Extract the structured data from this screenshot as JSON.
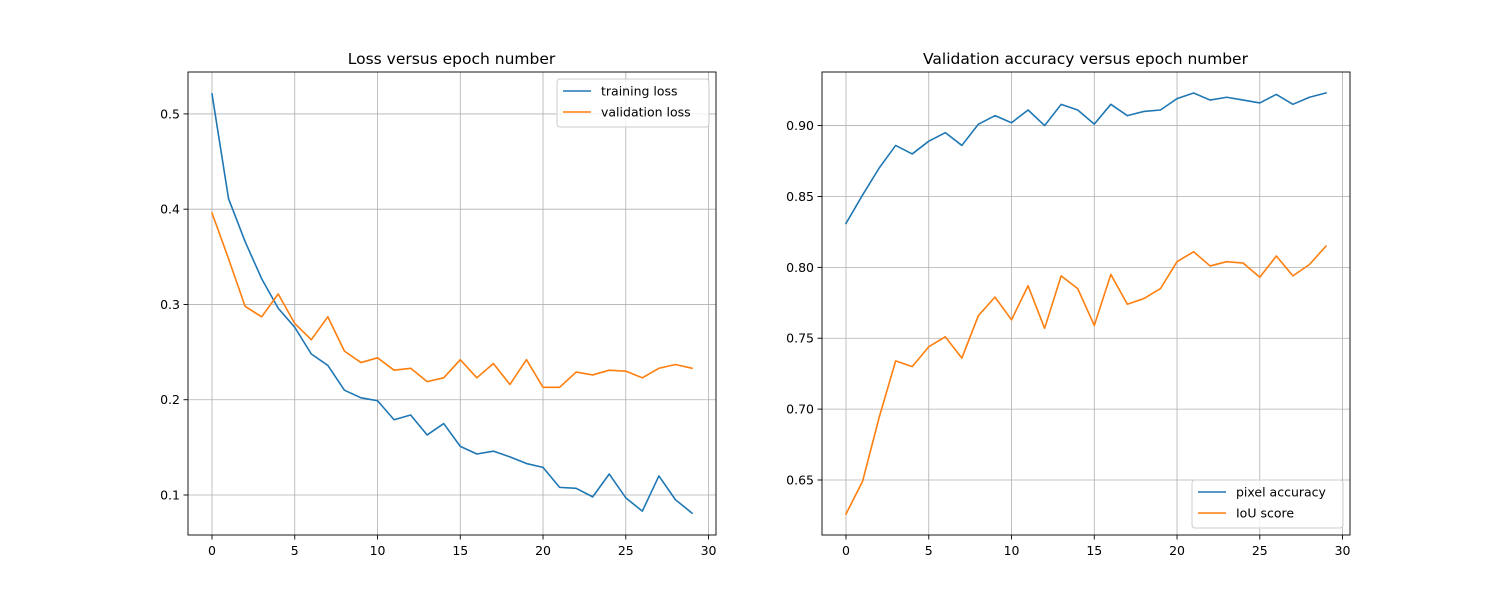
{
  "chart_data": [
    {
      "type": "line",
      "title": "Loss versus epoch number",
      "xlabel": "",
      "ylabel": "",
      "x": [
        0,
        1,
        2,
        3,
        4,
        5,
        6,
        7,
        8,
        9,
        10,
        11,
        12,
        13,
        14,
        15,
        16,
        17,
        18,
        19,
        20,
        21,
        22,
        23,
        24,
        25,
        26,
        27,
        28,
        29
      ],
      "series": [
        {
          "name": "training loss",
          "color": "#1f77b4",
          "values": [
            0.521,
            0.411,
            0.366,
            0.327,
            0.296,
            0.276,
            0.248,
            0.236,
            0.21,
            0.202,
            0.199,
            0.179,
            0.184,
            0.163,
            0.175,
            0.151,
            0.143,
            0.146,
            0.14,
            0.133,
            0.129,
            0.108,
            0.107,
            0.098,
            0.122,
            0.097,
            0.083,
            0.12,
            0.095,
            0.081
          ]
        },
        {
          "name": "validation loss",
          "color": "#ff7f0e",
          "values": [
            0.396,
            0.348,
            0.298,
            0.287,
            0.311,
            0.28,
            0.263,
            0.287,
            0.251,
            0.239,
            0.244,
            0.231,
            0.233,
            0.219,
            0.223,
            0.242,
            0.223,
            0.238,
            0.216,
            0.242,
            0.213,
            0.213,
            0.229,
            0.226,
            0.231,
            0.23,
            0.223,
            0.233,
            0.237,
            0.233
          ]
        }
      ],
      "xlim": [
        -1.45,
        30.45
      ],
      "ylim": [
        0.058,
        0.544
      ],
      "xticks": [
        0,
        5,
        10,
        15,
        20,
        25,
        30
      ],
      "xtick_labels": [
        "0",
        "5",
        "10",
        "15",
        "20",
        "25",
        "30"
      ],
      "yticks": [
        0.1,
        0.2,
        0.3,
        0.4,
        0.5
      ],
      "ytick_labels": [
        "0.1",
        "0.2",
        "0.3",
        "0.4",
        "0.5"
      ],
      "grid": true,
      "legend": "upper right"
    },
    {
      "type": "line",
      "title": "Validation accuracy versus epoch number",
      "xlabel": "",
      "ylabel": "",
      "x": [
        0,
        1,
        2,
        3,
        4,
        5,
        6,
        7,
        8,
        9,
        10,
        11,
        12,
        13,
        14,
        15,
        16,
        17,
        18,
        19,
        20,
        21,
        22,
        23,
        24,
        25,
        26,
        27,
        28,
        29
      ],
      "series": [
        {
          "name": "pixel accuracy",
          "color": "#1f77b4",
          "values": [
            0.831,
            0.851,
            0.87,
            0.886,
            0.88,
            0.889,
            0.895,
            0.886,
            0.901,
            0.907,
            0.902,
            0.911,
            0.9,
            0.915,
            0.911,
            0.901,
            0.915,
            0.907,
            0.91,
            0.911,
            0.919,
            0.923,
            0.918,
            0.92,
            0.918,
            0.916,
            0.922,
            0.915,
            0.92,
            0.923
          ]
        },
        {
          "name": "IoU score",
          "color": "#ff7f0e",
          "values": [
            0.626,
            0.649,
            0.694,
            0.734,
            0.73,
            0.744,
            0.751,
            0.736,
            0.766,
            0.779,
            0.763,
            0.787,
            0.757,
            0.794,
            0.785,
            0.759,
            0.795,
            0.774,
            0.778,
            0.785,
            0.804,
            0.811,
            0.801,
            0.804,
            0.803,
            0.793,
            0.808,
            0.794,
            0.802,
            0.815
          ]
        }
      ],
      "xlim": [
        -1.45,
        30.45
      ],
      "ylim": [
        0.6112,
        0.9378
      ],
      "xticks": [
        0,
        5,
        10,
        15,
        20,
        25,
        30
      ],
      "xtick_labels": [
        "0",
        "5",
        "10",
        "15",
        "20",
        "25",
        "30"
      ],
      "yticks": [
        0.65,
        0.7,
        0.75,
        0.8,
        0.85,
        0.9
      ],
      "ytick_labels": [
        "0.65",
        "0.70",
        "0.75",
        "0.80",
        "0.85",
        "0.90"
      ],
      "grid": true,
      "legend": "lower right"
    }
  ]
}
